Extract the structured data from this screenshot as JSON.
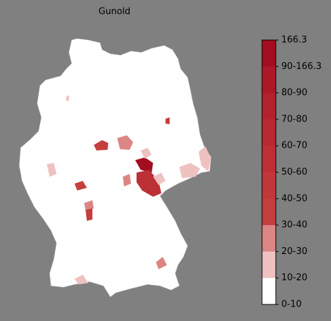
{
  "title": "Gunold",
  "colorbar": {
    "labels": [
      "166.3",
      "90-166.3",
      "80-90",
      "70-80",
      "60-70",
      "50-60",
      "40-50",
      "30-40",
      "20-30",
      "10-20",
      "0-10"
    ],
    "colors": [
      "#a30d20",
      "#ad1828",
      "#b3212e",
      "#b82932",
      "#bd3036",
      "#c1373a",
      "#c53f3f",
      "#dc8585",
      "#efc1c1",
      "#ffffff"
    ]
  }
}
